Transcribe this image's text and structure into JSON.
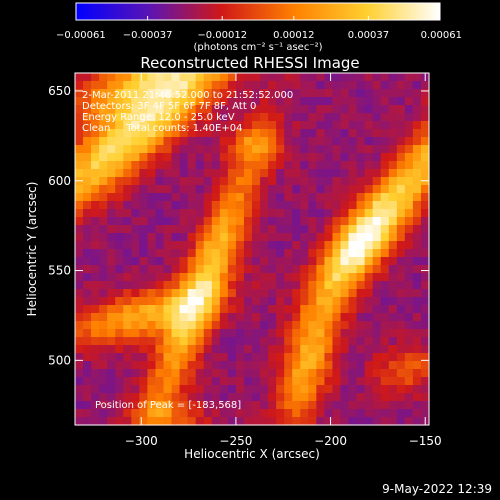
{
  "chart_data": {
    "type": "heatmap",
    "title": "Reconstructed RHESSI Image",
    "xlabel": "Heliocentric X (arcsec)",
    "ylabel": "Heliocentric Y (arcsec)",
    "xlim": [
      -335,
      -148
    ],
    "ylim": [
      464,
      660
    ],
    "x_ticks": [
      -300,
      -250,
      -200,
      -150
    ],
    "x_tick_labels": [
      "−300",
      "−250",
      "−200",
      "−150"
    ],
    "y_ticks": [
      500,
      550,
      600,
      650
    ],
    "y_tick_labels": [
      "500",
      "550",
      "600",
      "650"
    ],
    "colorbar": {
      "range": [
        -0.00061,
        0.00061
      ],
      "ticks": [
        -0.00061,
        -0.00037,
        -0.00012,
        0.00012,
        0.00037,
        0.00061
      ],
      "tick_labels": [
        "−0.00061",
        "−0.00037",
        "−0.00012",
        "0.00012",
        "0.00037",
        "0.00061"
      ],
      "unit_label": "(photons cm⁻² s⁻¹ asec⁻²)",
      "colors": [
        "#0000ff",
        "#5a14b4",
        "#d01818",
        "#ff8000",
        "#ffd030",
        "#ffffff"
      ]
    },
    "annotations": [
      "2-Mar-2011 21:46:52.000 to 21:52:52.000",
      "Detectors: 3F 4F 5F 6F 7F 8F, Att 0",
      "Energy Range: 12.0 - 25.0 keV",
      "Clean     Total counts: 1.40E+04"
    ],
    "peak_label": "Position of Peak = [-183,568]",
    "peak": [
      -183,
      568
    ],
    "background_value": -0.00025,
    "sources": [
      {
        "x": -185,
        "y": 565,
        "amplitude": 0.00078,
        "sigma_along": 24,
        "sigma_across": 9,
        "angle_deg": 58
      },
      {
        "x": -150,
        "y": 610,
        "amplitude": 0.0005,
        "sigma_along": 35,
        "sigma_across": 9,
        "angle_deg": 58
      },
      {
        "x": -305,
        "y": 625,
        "amplitude": 0.0007,
        "sigma_along": 50,
        "sigma_across": 11,
        "angle_deg": 42
      },
      {
        "x": -300,
        "y": 655,
        "amplitude": 0.0005,
        "sigma_along": 30,
        "sigma_across": 10,
        "angle_deg": 25
      },
      {
        "x": -268,
        "y": 540,
        "amplitude": 0.0006,
        "sigma_along": 55,
        "sigma_across": 8,
        "angle_deg": 70
      },
      {
        "x": -300,
        "y": 525,
        "amplitude": 0.0005,
        "sigma_along": 28,
        "sigma_across": 9,
        "angle_deg": 15
      },
      {
        "x": -212,
        "y": 500,
        "amplitude": 0.0005,
        "sigma_along": 28,
        "sigma_across": 9,
        "angle_deg": 75
      },
      {
        "x": -240,
        "y": 620,
        "amplitude": 0.0003,
        "sigma_along": 10,
        "sigma_across": 8,
        "angle_deg": 0
      },
      {
        "x": -160,
        "y": 495,
        "amplitude": 0.00028,
        "sigma_along": 12,
        "sigma_across": 9,
        "angle_deg": 20
      },
      {
        "x": -285,
        "y": 468,
        "amplitude": 0.00025,
        "sigma_along": 14,
        "sigma_across": 8,
        "angle_deg": 0
      }
    ],
    "grid": false
  },
  "footer_datetime": "9-May-2022 12:39"
}
